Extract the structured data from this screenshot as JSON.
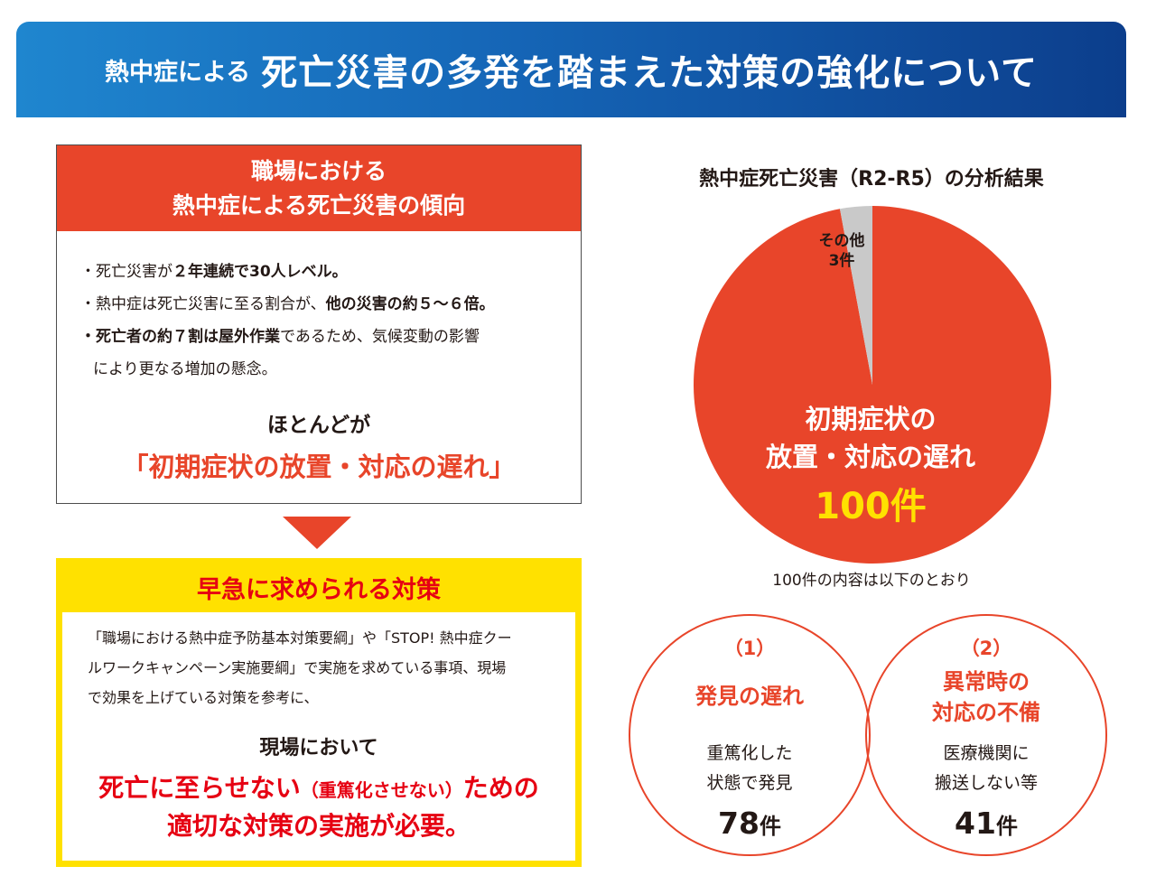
{
  "header": {
    "pre_title": "熱中症による",
    "title": "死亡災害の多発を踏まえた対策の強化について"
  },
  "trend": {
    "heading_line1": "職場における",
    "heading_line2": "熱中症による死亡災害の傾向",
    "b1_pre": "・死亡災害が",
    "b1_bold": "２年連続で30人レベル。",
    "b2_pre": "・熱中症は死亡災害に至る割合が、",
    "b2_bold": "他の災害の約５～６倍。",
    "b3_bold": "・死亡者の約７割は屋外作業",
    "b3_post": "であるため、気候変動の影響",
    "b3_cont": "により更なる増加の懸念。",
    "conclusion_lead": "ほとんどが",
    "conclusion_main": "「初期症状の放置・対応の遅れ」"
  },
  "measures": {
    "heading": "早急に求められる対策",
    "para_line1": "「職場における熱中症予防基本対策要綱」や「STOP! 熱中症クー",
    "para_line2": "ルワークキャンペーン実施要綱」で実施を求めている事項、現場",
    "para_line3": "で効果を上げている対策を参考に、",
    "lead": "現場において",
    "red1_a": "死亡に至らせない",
    "red1_b": "（重篤化させない）",
    "red1_c": "ための",
    "red2": "適切な対策の実施が必要。"
  },
  "analysis": {
    "chart_title": "熱中症死亡災害（R2-R5）の分析結果",
    "note": "100件の内容は以下のとおり",
    "label_major_line1": "初期症状の",
    "label_major_line2": "放置・対応の遅れ",
    "label_major_count": "100件",
    "label_other_line1": "その他",
    "label_other_line2": "3件",
    "colors": {
      "major": "#e8452a",
      "other": "#c9c9c9",
      "highlight": "#ffe100"
    }
  },
  "chart_data": {
    "type": "pie",
    "title": "熱中症死亡災害（R2-R5）の分析結果",
    "categories": [
      "初期症状の放置・対応の遅れ",
      "その他"
    ],
    "values": [
      100,
      3
    ],
    "units": "件"
  },
  "breakdown": {
    "item1": {
      "num": "（1）",
      "title": "発見の遅れ",
      "desc_line1": "重篤化した",
      "desc_line2": "状態で発見",
      "count": "78",
      "unit": "件"
    },
    "item2": {
      "num": "（2）",
      "title_line1": "異常時の",
      "title_line2": "対応の不備",
      "desc_line1": "医療機関に",
      "desc_line2": "搬送しない等",
      "count": "41",
      "unit": "件"
    }
  }
}
